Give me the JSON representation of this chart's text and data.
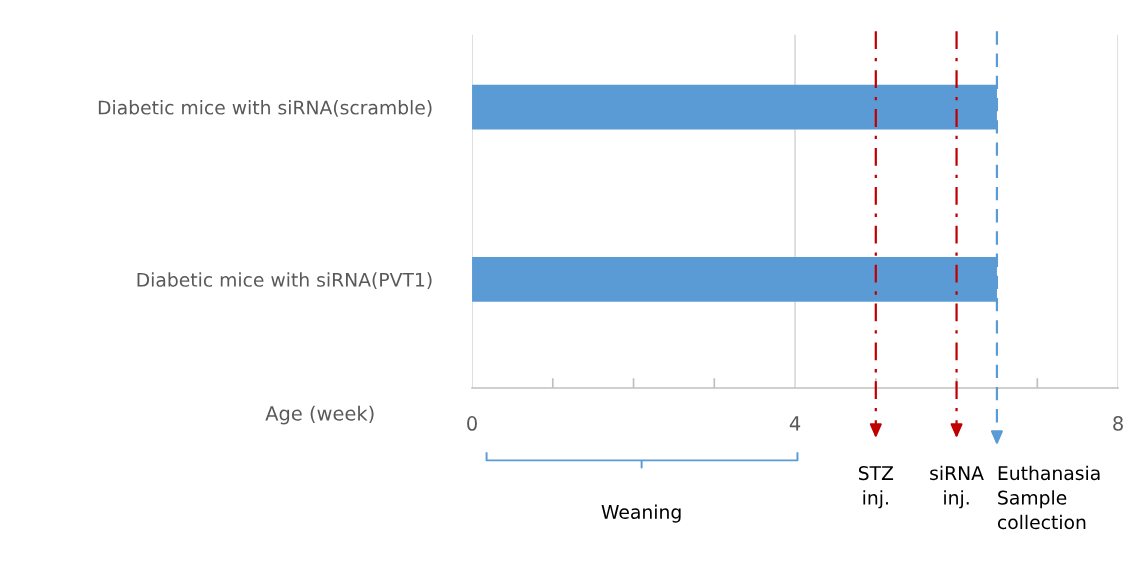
{
  "chart_data": {
    "type": "bar",
    "orientation": "horizontal",
    "xlabel": "Age (week)",
    "categories": [
      "Diabetic mice with siRNA(scramble)",
      "Diabetic mice with siRNA(PVT1)"
    ],
    "values": [
      6.5,
      6.5
    ],
    "color": "#5b9bd5",
    "xlim": [
      0,
      8
    ],
    "xticks": [
      0,
      4,
      8
    ],
    "grid": "x",
    "ref_lines": [
      {
        "axis": "x",
        "value": 5,
        "label": "STZ\ninj.",
        "color": "#c00000",
        "line_style": "dashdot"
      },
      {
        "axis": "x",
        "value": 6,
        "label": "siRNA\ninj.",
        "color": "#c00000",
        "line_style": "dashdot"
      },
      {
        "axis": "x",
        "value": 6.5,
        "label": "Euthanasia\nSample\ncollection",
        "color": "#5b9bd5",
        "line_style": "dashed"
      }
    ],
    "annotations": [
      "Weaning"
    ]
  }
}
